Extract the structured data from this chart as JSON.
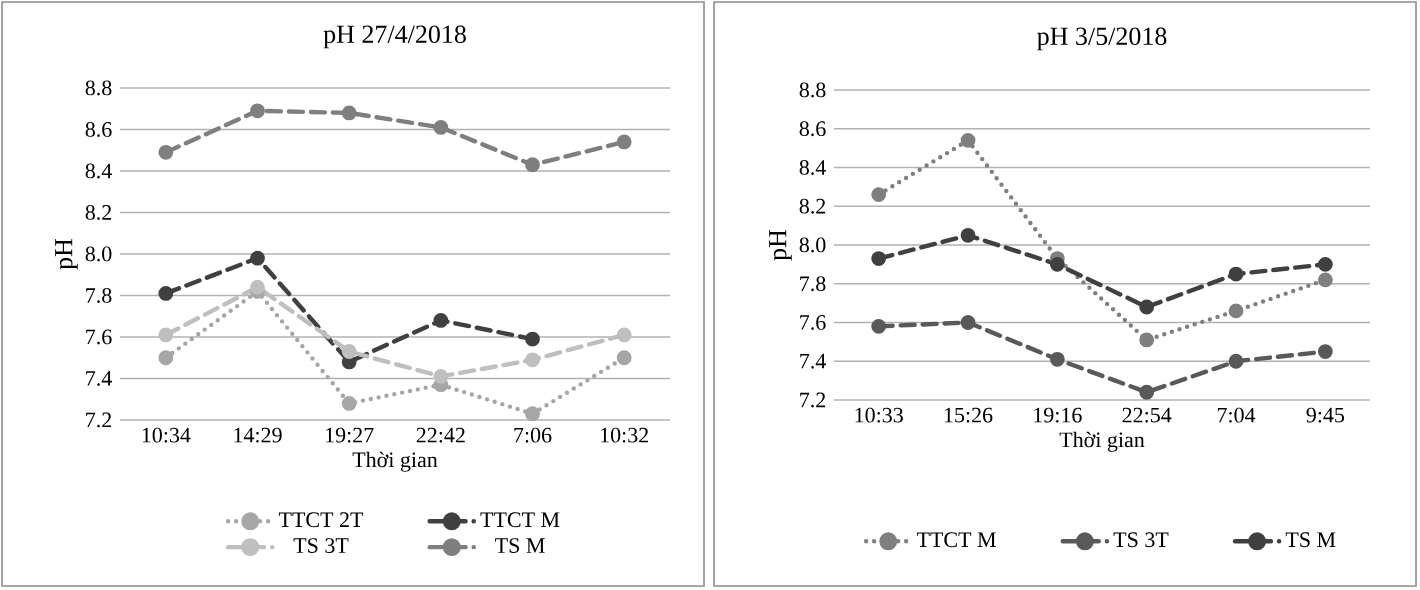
{
  "chart_data": [
    {
      "type": "line",
      "title": "pH 27/4/2018",
      "xlabel": "Thời gian",
      "ylabel": "pH",
      "categories": [
        "10:34",
        "14:29",
        "19:27",
        "22:42",
        "7:06",
        "10:32"
      ],
      "ylim": [
        7.2,
        8.8
      ],
      "yticks": [
        7.2,
        7.4,
        7.6,
        7.8,
        {
          "value": 8.0,
          "label": "8.0"
        },
        8.2,
        8.4,
        8.6,
        8.8
      ],
      "grid": "y",
      "legend": "bottom",
      "marker": "circle",
      "series": [
        {
          "name": "TTCT 2T",
          "color": "#a6a6a6",
          "line_style": "dotted",
          "values": [
            7.5,
            7.82,
            7.28,
            7.37,
            7.23,
            7.5
          ]
        },
        {
          "name": "TTCT M",
          "color": "#404040",
          "line_style": "dashed",
          "values": [
            7.81,
            7.98,
            7.48,
            7.68,
            7.59,
            null
          ]
        },
        {
          "name": "TS 3T",
          "color": "#bfbfbf",
          "line_style": "dashed",
          "values": [
            7.61,
            7.84,
            7.53,
            7.41,
            7.49,
            7.61
          ]
        },
        {
          "name": "TS M",
          "color": "#7f7f7f",
          "line_style": "dashed",
          "values": [
            8.49,
            8.69,
            8.68,
            8.61,
            8.43,
            8.54
          ]
        }
      ]
    },
    {
      "type": "line",
      "title": "pH 3/5/2018",
      "xlabel": "Thời gian",
      "ylabel": "pH",
      "categories": [
        "10:33",
        "15:26",
        "19:16",
        "22:54",
        "7:04",
        "9:45"
      ],
      "ylim": [
        7.2,
        8.8
      ],
      "yticks": [
        7.2,
        7.4,
        7.6,
        7.8,
        {
          "value": 8.0,
          "label": "8.0"
        },
        8.2,
        8.4,
        8.6,
        8.8
      ],
      "grid": "y",
      "legend": "bottom",
      "marker": "circle",
      "series": [
        {
          "name": "TTCT M",
          "color": "#7f7f7f",
          "line_style": "dotted",
          "values": [
            8.26,
            8.54,
            7.93,
            7.51,
            7.66,
            7.82
          ]
        },
        {
          "name": "TS 3T",
          "color": "#595959",
          "line_style": "dashed",
          "values": [
            7.58,
            7.6,
            7.41,
            7.24,
            7.4,
            7.45
          ]
        },
        {
          "name": "TS M",
          "color": "#404040",
          "line_style": "dashed",
          "values": [
            7.93,
            8.05,
            7.9,
            7.68,
            7.85,
            7.9
          ]
        }
      ]
    }
  ]
}
